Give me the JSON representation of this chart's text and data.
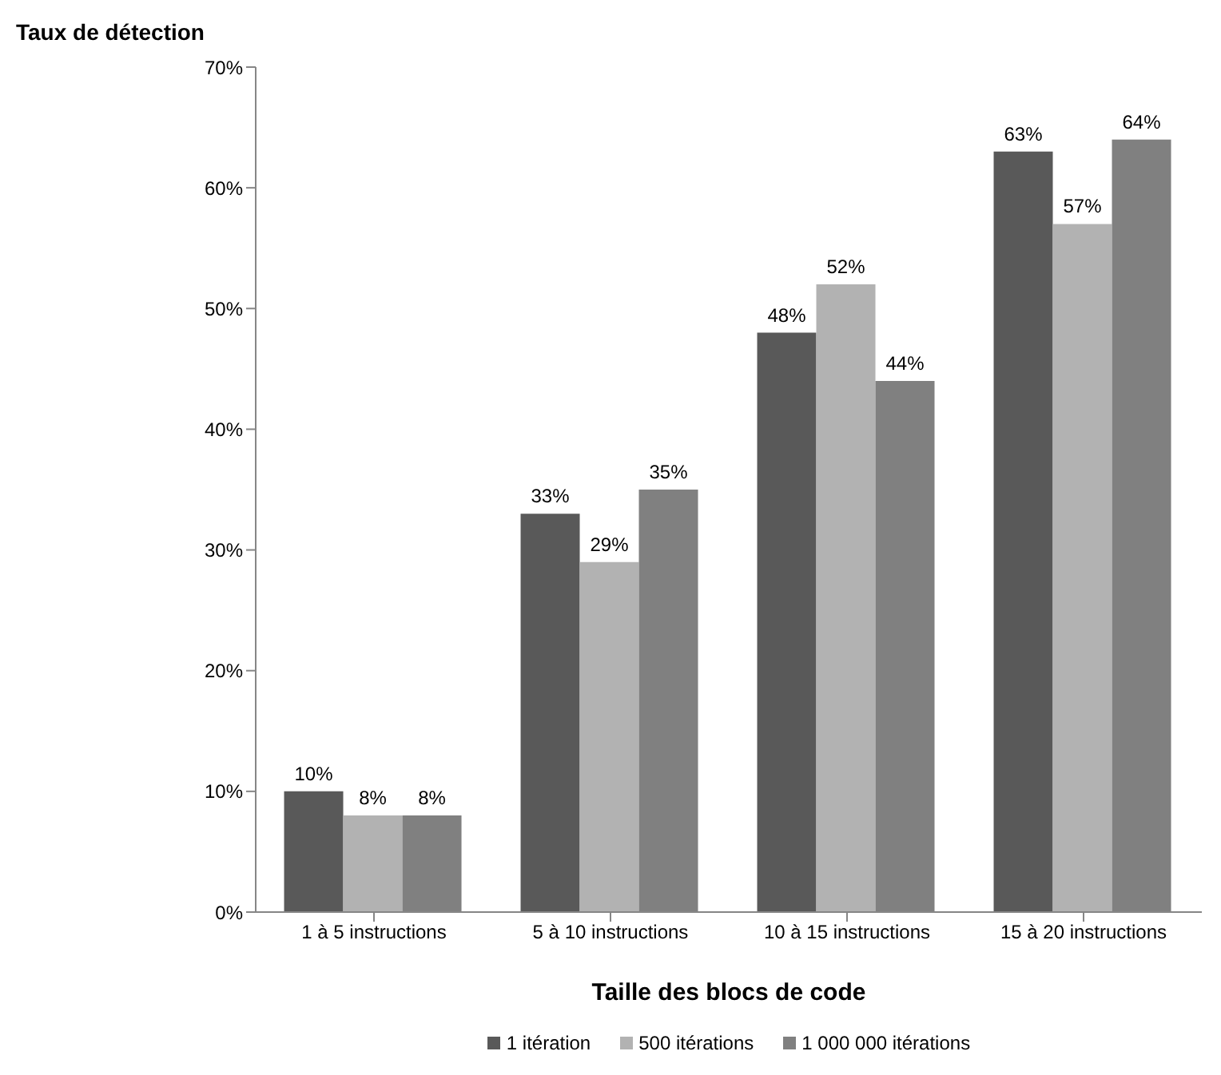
{
  "chart_data": {
    "type": "bar",
    "ylabel": "Taux de détection",
    "xlabel": "Taille des blocs de code",
    "categories": [
      "1 à 5 instructions",
      "5 à 10 instructions",
      "10 à 15 instructions",
      "15 à 20 instructions"
    ],
    "series": [
      {
        "name": "1 itération",
        "color": "#595959",
        "values": [
          10,
          33,
          48,
          63
        ],
        "value_labels": [
          "10%",
          "33%",
          "48%",
          "63%"
        ]
      },
      {
        "name": "500 itérations",
        "color": "#b2b2b2",
        "values": [
          8,
          29,
          52,
          57
        ],
        "value_labels": [
          "8%",
          "29%",
          "52%",
          "57%"
        ]
      },
      {
        "name": "1 000 000 itérations",
        "color": "#808080",
        "values": [
          8,
          35,
          44,
          64
        ],
        "value_labels": [
          "8%",
          "35%",
          "44%",
          "64%"
        ]
      }
    ],
    "ylim": [
      0,
      70
    ],
    "yticks": [
      {
        "value": 0,
        "label": "0%"
      },
      {
        "value": 10,
        "label": "10%"
      },
      {
        "value": 20,
        "label": "20%"
      },
      {
        "value": 30,
        "label": "30%"
      },
      {
        "value": 40,
        "label": "40%"
      },
      {
        "value": 50,
        "label": "50%"
      },
      {
        "value": 60,
        "label": "60%"
      },
      {
        "value": 70,
        "label": "70%"
      }
    ],
    "grid": false,
    "legend": "bottom"
  }
}
